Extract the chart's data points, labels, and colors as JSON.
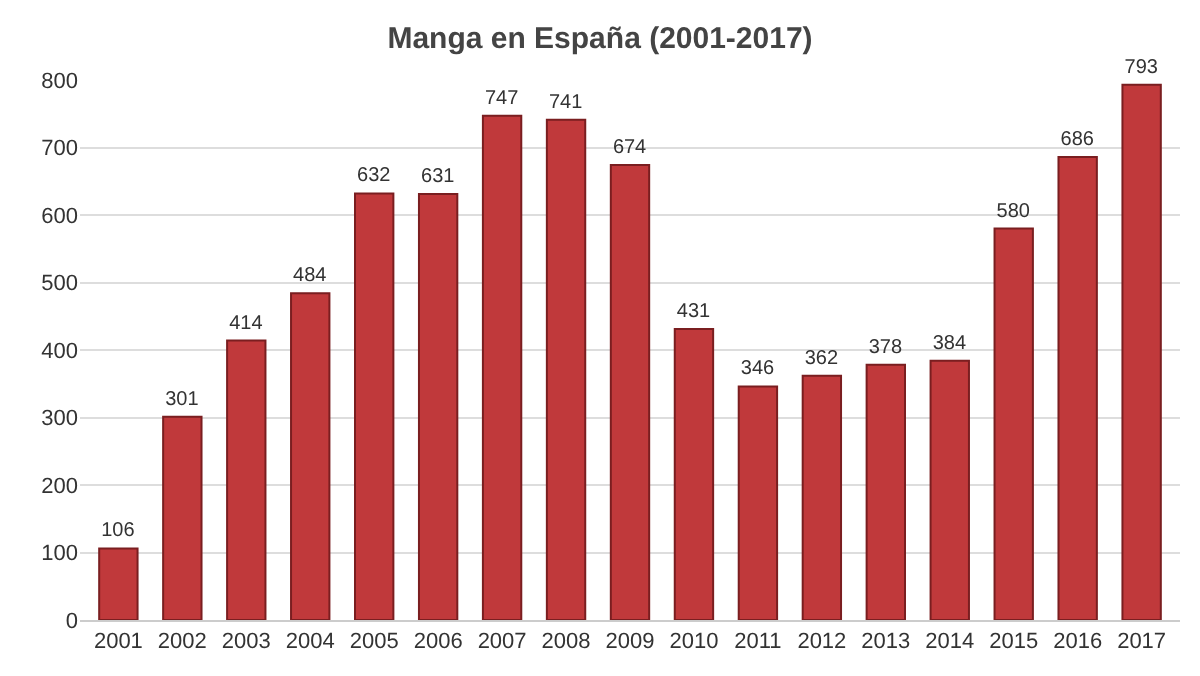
{
  "chart_data": {
    "type": "bar",
    "title": "Manga en España (2001-2017)",
    "categories": [
      "2001",
      "2002",
      "2003",
      "2004",
      "2005",
      "2006",
      "2007",
      "2008",
      "2009",
      "2010",
      "2011",
      "2012",
      "2013",
      "2014",
      "2015",
      "2016",
      "2017"
    ],
    "values": [
      106,
      301,
      414,
      484,
      632,
      631,
      747,
      741,
      674,
      431,
      346,
      362,
      378,
      384,
      580,
      686,
      793
    ],
    "color": "#c0393b",
    "ylim": [
      0,
      800
    ],
    "yticks": [
      0,
      100,
      200,
      300,
      400,
      500,
      600,
      700,
      800
    ],
    "grid": "y",
    "data_labels": true
  }
}
